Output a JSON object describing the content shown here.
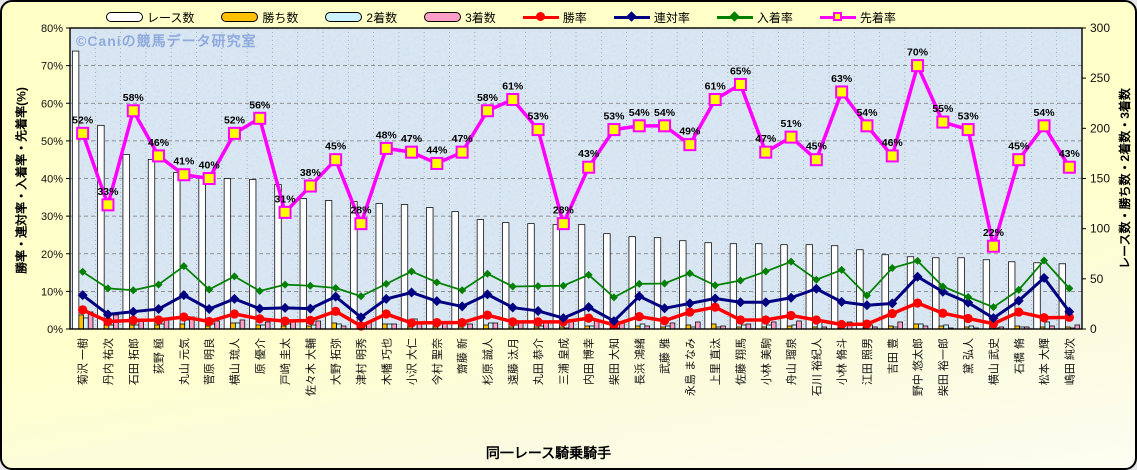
{
  "watermark": "©Caniの競馬データ研究室",
  "chart_data": {
    "type": "combo-bar-line",
    "categories": [
      "菊沢 一樹",
      "丹内 祐次",
      "石田 拓郎",
      "荻野 極",
      "丸山 元気",
      "菅原 明良",
      "横山 琉人",
      "原 優介",
      "戸崎 圭太",
      "佐々木 大輔",
      "大野 拓弥",
      "津村 明秀",
      "木幡 巧也",
      "小沢 大仁",
      "今村 聖奈",
      "齋藤 新",
      "杉原 誠人",
      "遠藤 汰月",
      "丸田 恭介",
      "三浦 皇成",
      "内田 博幸",
      "柴田 大知",
      "長浜 鴻緒",
      "武藤 雅",
      "永島 まなみ",
      "上里 直汰",
      "佐藤 翔馬",
      "小林 美駒",
      "舟山 瑠泉",
      "石川 裕紀人",
      "小林 脩斗",
      "江田 照男",
      "吉田 豊",
      "野中 悠太郎",
      "柴田 裕一郎",
      "黛 弘人",
      "横山 武史",
      "石橋 脩",
      "松本 大輝",
      "嶋田 純次"
    ],
    "left_axis": {
      "title": "勝率・連対率・入着率・先着率(%)",
      "min": 0,
      "max": 80,
      "tick_labels": [
        "0%",
        "10%",
        "20%",
        "30%",
        "40%",
        "50%",
        "60%",
        "70%",
        "80%"
      ]
    },
    "right_axis": {
      "title": "レース数・勝ち数・2着数・3着数",
      "min": 0,
      "max": 300,
      "tick_labels": [
        "0",
        "50",
        "100",
        "150",
        "200",
        "250",
        "300"
      ]
    },
    "x_axis": {
      "title": "同一レース騎乗騎手"
    },
    "grid": {
      "horizontal": true,
      "vertical": true
    },
    "legend_position": "top",
    "series": [
      {
        "name": "レース数",
        "type": "bar",
        "axis": "right",
        "color": "#ffffff",
        "values": [
          277,
          203,
          174,
          169,
          156,
          152,
          150,
          149,
          144,
          130,
          128,
          127,
          125,
          124,
          121,
          117,
          109,
          106,
          105,
          104,
          104,
          95,
          92,
          91,
          88,
          86,
          85,
          85,
          84,
          84,
          83,
          79,
          74,
          72,
          71,
          71,
          69,
          67,
          66,
          65
        ]
      },
      {
        "name": "勝ち数",
        "type": "bar",
        "axis": "right",
        "color": "#ffc000",
        "values": [
          14,
          4,
          4,
          4,
          5,
          3,
          6,
          4,
          3,
          3,
          6,
          1,
          5,
          2,
          2,
          2,
          4,
          2,
          2,
          2,
          3,
          1,
          3,
          2,
          4,
          5,
          2,
          2,
          3,
          2,
          1,
          1,
          3,
          5,
          3,
          2,
          1,
          3,
          2,
          2
        ]
      },
      {
        "name": "2着数",
        "type": "bar",
        "axis": "right",
        "color": "#ccf2ff",
        "values": [
          11,
          4,
          4,
          5,
          9,
          5,
          6,
          4,
          5,
          4,
          5,
          3,
          5,
          10,
          7,
          5,
          6,
          4,
          3,
          1,
          3,
          1,
          5,
          3,
          2,
          2,
          4,
          4,
          4,
          7,
          5,
          4,
          2,
          5,
          4,
          3,
          1,
          2,
          7,
          1
        ]
      },
      {
        "name": "3着数",
        "type": "bar",
        "axis": "right",
        "color": "#ff9ec6",
        "values": [
          17,
          14,
          10,
          11,
          12,
          8,
          9,
          7,
          9,
          8,
          3,
          7,
          5,
          7,
          6,
          5,
          6,
          6,
          7,
          9,
          9,
          6,
          3,
          6,
          7,
          3,
          5,
          7,
          8,
          2,
          7,
          2,
          7,
          3,
          1,
          1,
          2,
          2,
          3,
          4
        ]
      },
      {
        "name": "勝率",
        "type": "line",
        "axis": "left",
        "color": "#ff0000",
        "marker": "circle",
        "width": 3.5,
        "values": [
          5.1,
          2.0,
          2.3,
          2.4,
          3.2,
          2.0,
          4.0,
          2.7,
          2.1,
          2.3,
          4.7,
          0.8,
          4.0,
          1.6,
          1.7,
          1.7,
          3.7,
          1.9,
          1.9,
          1.9,
          2.9,
          1.1,
          3.3,
          2.2,
          4.5,
          5.8,
          2.4,
          2.4,
          3.6,
          2.4,
          1.2,
          1.3,
          4.1,
          6.9,
          4.2,
          2.8,
          1.4,
          4.5,
          3.0,
          3.1
        ]
      },
      {
        "name": "連対率",
        "type": "line",
        "axis": "left",
        "color": "#000080",
        "marker": "diamond",
        "width": 3,
        "values": [
          9.0,
          3.9,
          4.6,
          5.3,
          9.0,
          5.3,
          8.0,
          5.4,
          5.6,
          5.4,
          8.6,
          3.1,
          8.0,
          9.7,
          7.4,
          6.0,
          9.2,
          5.7,
          4.8,
          2.9,
          5.8,
          2.1,
          8.7,
          5.5,
          6.8,
          8.1,
          7.1,
          7.1,
          8.3,
          10.7,
          7.2,
          6.3,
          6.8,
          13.9,
          9.9,
          7.0,
          2.9,
          7.5,
          13.6,
          4.6
        ]
      },
      {
        "name": "入着率",
        "type": "line",
        "axis": "left",
        "color": "#008000",
        "marker": "diamond-small",
        "width": 1.75,
        "values": [
          15.2,
          10.8,
          10.3,
          11.8,
          16.7,
          10.5,
          14.0,
          10.1,
          11.8,
          11.5,
          10.9,
          8.7,
          12.0,
          15.3,
          12.4,
          10.3,
          14.7,
          11.3,
          11.4,
          11.5,
          14.4,
          8.4,
          12.0,
          12.1,
          14.8,
          11.6,
          12.9,
          15.3,
          17.9,
          13.1,
          15.7,
          8.9,
          16.2,
          18.1,
          11.3,
          8.5,
          5.8,
          10.4,
          18.2,
          10.8
        ]
      },
      {
        "name": "先着率",
        "type": "line",
        "axis": "left",
        "color": "#ff00ff",
        "marker": "square-yellow",
        "width": 3.5,
        "data_labels": true,
        "label_suffix": "%",
        "values": [
          52,
          33,
          58,
          46,
          41,
          40,
          52,
          56,
          31,
          38,
          45,
          28,
          48,
          47,
          44,
          47,
          58,
          61,
          53,
          28,
          43,
          53,
          54,
          54,
          49,
          61,
          65,
          47,
          51,
          45,
          63,
          54,
          46,
          70,
          55,
          53,
          22,
          45,
          54,
          43
        ]
      }
    ]
  }
}
